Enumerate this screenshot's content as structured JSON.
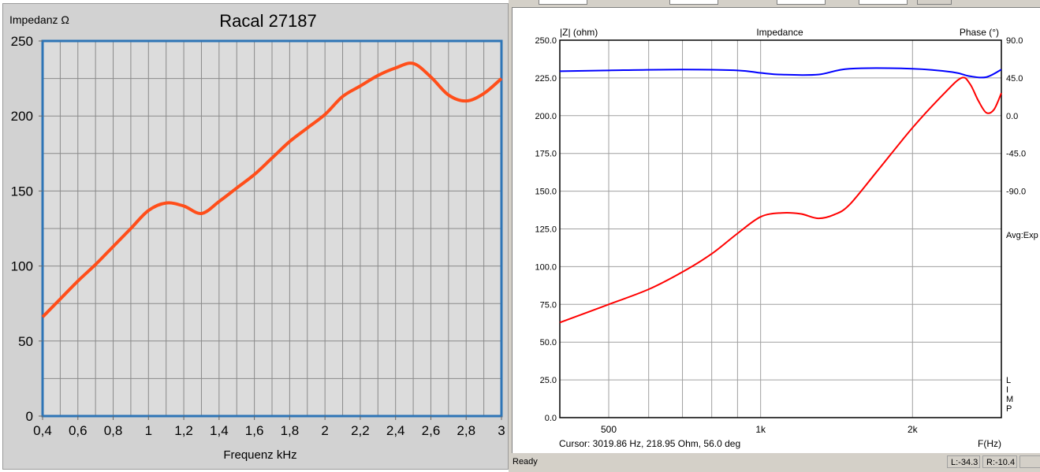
{
  "chart_data": [
    {
      "type": "line",
      "title": "Racal 27187",
      "xlabel": "Frequenz kHz",
      "ylabel": "Impedanz Ω",
      "xlim": [
        0.4,
        3
      ],
      "ylim": [
        0,
        250
      ],
      "grid": true,
      "xticks": [
        "0,4",
        "0,6",
        "0,8",
        "1",
        "1,2",
        "1,4",
        "1,6",
        "1,8",
        "2",
        "2,2",
        "2,4",
        "2,6",
        "2,8",
        "3"
      ],
      "yticks": [
        "0",
        "50",
        "100",
        "150",
        "200",
        "250"
      ],
      "line_color": "#ff4e1a",
      "frame_color": "#2e75b6",
      "x": [
        0.4,
        0.5,
        0.6,
        0.7,
        0.8,
        0.9,
        1.0,
        1.1,
        1.2,
        1.3,
        1.4,
        1.5,
        1.6,
        1.7,
        1.8,
        1.9,
        2.0,
        2.1,
        2.2,
        2.3,
        2.4,
        2.5,
        2.6,
        2.7,
        2.8,
        2.9,
        3.0
      ],
      "y": [
        66,
        78,
        90,
        101,
        113,
        125,
        137,
        142,
        140,
        135,
        143,
        152,
        161,
        172,
        183,
        192,
        201,
        213,
        220,
        227,
        232,
        235,
        226,
        214,
        210,
        215,
        225
      ]
    },
    {
      "type": "line",
      "title": "Impedance",
      "ylabel": "|Z| (ohm)",
      "y2label": "Phase (°)",
      "xlabel": "F(Hz)",
      "xscale": "log",
      "xlim": [
        400,
        3000
      ],
      "ylim": [
        0,
        250
      ],
      "y2lim": [
        -90,
        90
      ],
      "grid": true,
      "xticks": [
        {
          "v": 500,
          "label": "500"
        },
        {
          "v": 1000,
          "label": "1k"
        },
        {
          "v": 2000,
          "label": "2k"
        }
      ],
      "yticks": [
        "0.0",
        "25.0",
        "50.0",
        "75.0",
        "100.0",
        "125.0",
        "150.0",
        "175.0",
        "200.0",
        "225.0",
        "250.0"
      ],
      "y2ticks": [
        "90.0",
        "45.0",
        "0.0",
        "-45.0",
        "-90.0"
      ],
      "series": [
        {
          "axis": "left",
          "color": "#ff0000",
          "x": [
            400,
            500,
            600,
            700,
            800,
            900,
            1000,
            1100,
            1200,
            1300,
            1400,
            1500,
            1700,
            2000,
            2300,
            2500,
            2600,
            2700,
            2800,
            2900,
            3000
          ],
          "y": [
            63,
            75,
            85,
            96.5,
            108.5,
            122,
            133,
            135.6,
            135,
            132,
            134.5,
            141,
            163,
            192,
            214,
            225,
            221,
            210,
            202,
            204,
            215
          ]
        },
        {
          "axis": "right",
          "color": "#0000ff",
          "x": [
            400,
            500,
            700,
            900,
            1000,
            1100,
            1300,
            1500,
            2000,
            2400,
            2600,
            2800,
            3000
          ],
          "y": [
            53,
            54,
            55,
            54,
            51,
            49,
            49,
            56,
            56,
            52,
            47,
            46,
            55
          ]
        }
      ]
    }
  ],
  "right_panel": {
    "cursor": "Cursor: 3019.86 Hz, 218.95 Ohm, 56.0 deg",
    "avg": "Avg:Exp",
    "limp": [
      "L",
      "I",
      "M",
      "P"
    ]
  },
  "status": {
    "ready": "Ready",
    "left": "L:-34.3",
    "right": "R:-10.4"
  }
}
